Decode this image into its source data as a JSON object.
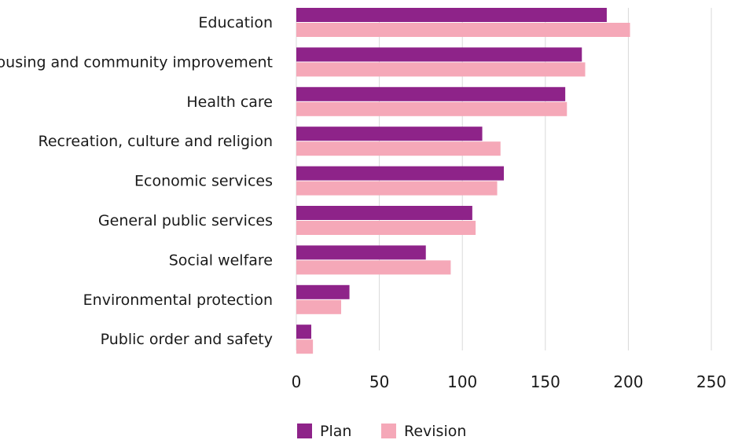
{
  "chart_data": {
    "type": "bar",
    "orientation": "horizontal",
    "categories": [
      "Education",
      "Housing and community improvement",
      "Health care",
      "Recreation, culture and religion",
      "Economic services",
      "General public services",
      "Social welfare",
      "Environmental protection",
      "Public order and safety"
    ],
    "series": [
      {
        "name": "Plan",
        "color": "#8e2389",
        "values": [
          187,
          172,
          162,
          112,
          125,
          106,
          78,
          32,
          9
        ]
      },
      {
        "name": "Revision",
        "color": "#f5a8b8",
        "values": [
          201,
          174,
          163,
          123,
          121,
          108,
          93,
          27,
          10
        ]
      }
    ],
    "xlim": [
      0,
      250
    ],
    "xticks": [
      0,
      50,
      100,
      150,
      200,
      250
    ],
    "grid": "vertical",
    "legend_position": "bottom-left",
    "title": "",
    "xlabel": "",
    "ylabel": ""
  }
}
